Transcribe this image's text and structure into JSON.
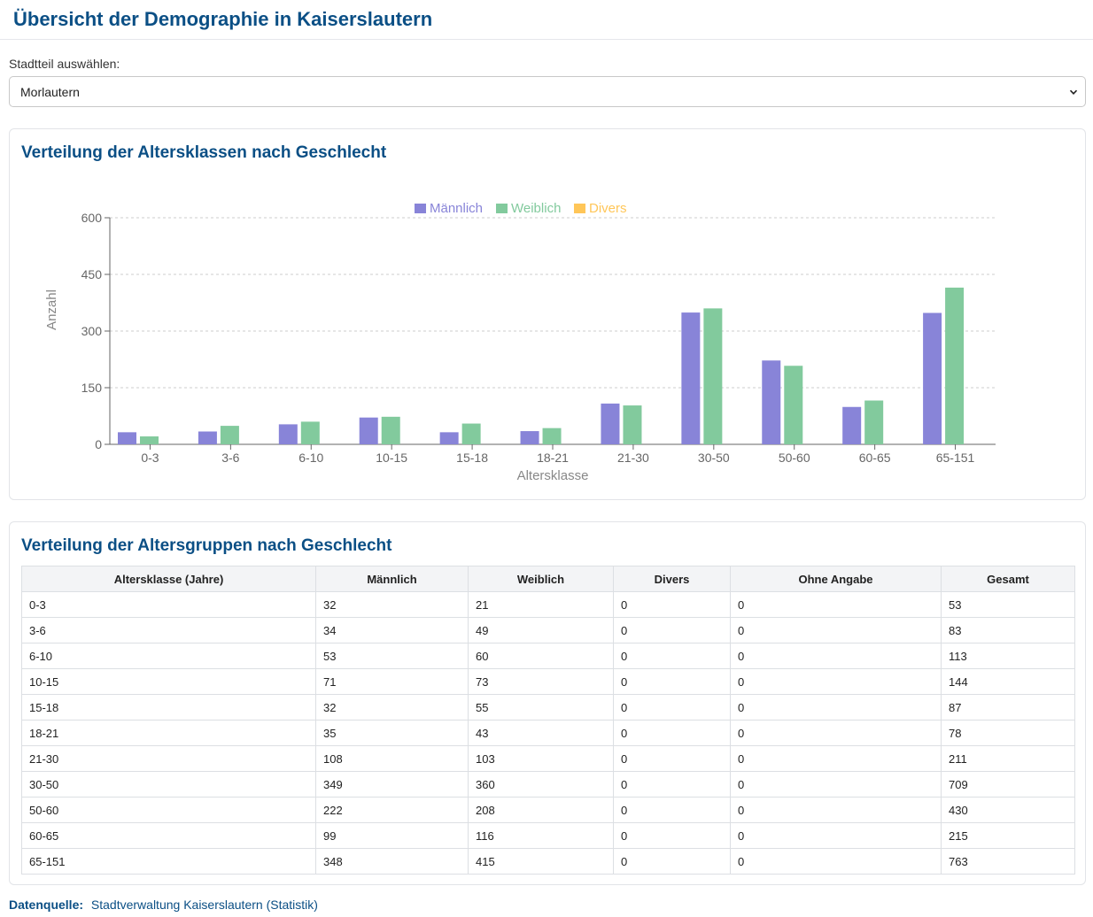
{
  "page": {
    "title": "Übersicht der Demographie in Kaiserslautern"
  },
  "district_select": {
    "label": "Stadtteil auswählen:",
    "value": "Morlautern"
  },
  "chart_section": {
    "title": "Verteilung der Altersklassen nach Geschlecht"
  },
  "table_section": {
    "title": "Verteilung der Altersgruppen nach Geschlecht"
  },
  "colors": {
    "male": "#8884d8",
    "female": "#82ca9d",
    "diverse": "#ffc658",
    "accent": "#0b4f85"
  },
  "chart_data": {
    "type": "bar",
    "title": "",
    "xlabel": "Altersklasse",
    "ylabel": "Anzahl",
    "ylim": [
      0,
      600
    ],
    "yticks": [
      0,
      150,
      300,
      450,
      600
    ],
    "grid": true,
    "legend_position": "top-center",
    "categories": [
      "0-3",
      "3-6",
      "6-10",
      "10-15",
      "15-18",
      "18-21",
      "21-30",
      "30-50",
      "50-60",
      "60-65",
      "65-151"
    ],
    "series": [
      {
        "name": "Männlich",
        "color": "#8884d8",
        "values": [
          32,
          34,
          53,
          71,
          32,
          35,
          108,
          349,
          222,
          99,
          348
        ]
      },
      {
        "name": "Weiblich",
        "color": "#82ca9d",
        "values": [
          21,
          49,
          60,
          73,
          55,
          43,
          103,
          360,
          208,
          116,
          415
        ]
      },
      {
        "name": "Divers",
        "color": "#ffc658",
        "values": [
          0,
          0,
          0,
          0,
          0,
          0,
          0,
          0,
          0,
          0,
          0
        ]
      }
    ]
  },
  "table": {
    "headers": [
      "Altersklasse (Jahre)",
      "Männlich",
      "Weiblich",
      "Divers",
      "Ohne Angabe",
      "Gesamt"
    ],
    "rows": [
      [
        "0-3",
        "32",
        "21",
        "0",
        "0",
        "53"
      ],
      [
        "3-6",
        "34",
        "49",
        "0",
        "0",
        "83"
      ],
      [
        "6-10",
        "53",
        "60",
        "0",
        "0",
        "113"
      ],
      [
        "10-15",
        "71",
        "73",
        "0",
        "0",
        "144"
      ],
      [
        "15-18",
        "32",
        "55",
        "0",
        "0",
        "87"
      ],
      [
        "18-21",
        "35",
        "43",
        "0",
        "0",
        "78"
      ],
      [
        "21-30",
        "108",
        "103",
        "0",
        "0",
        "211"
      ],
      [
        "30-50",
        "349",
        "360",
        "0",
        "0",
        "709"
      ],
      [
        "50-60",
        "222",
        "208",
        "0",
        "0",
        "430"
      ],
      [
        "60-65",
        "99",
        "116",
        "0",
        "0",
        "215"
      ],
      [
        "65-151",
        "348",
        "415",
        "0",
        "0",
        "763"
      ]
    ]
  },
  "footer": {
    "label": "Datenquelle:",
    "link_text": "Stadtverwaltung Kaiserslautern (Statistik)"
  }
}
